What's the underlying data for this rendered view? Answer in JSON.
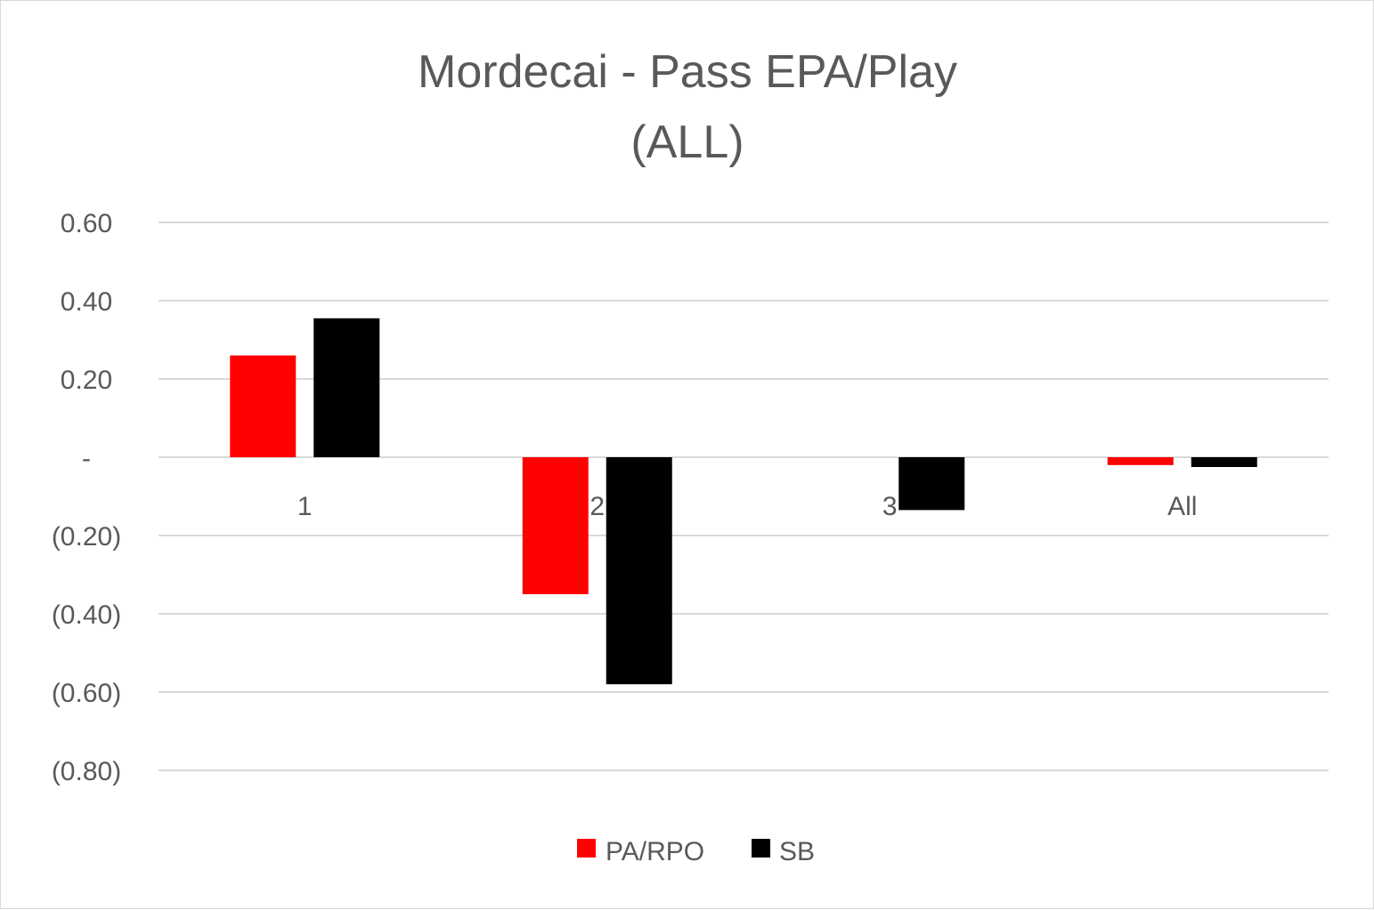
{
  "chart_data": {
    "type": "bar",
    "title_lines": [
      "Mordecai - Pass EPA/Play",
      "(ALL)"
    ],
    "categories": [
      "1",
      "2",
      "3",
      "All"
    ],
    "series": [
      {
        "name": "PA/RPO",
        "color": "#ff0000",
        "values": [
          0.26,
          -0.35,
          null,
          -0.02
        ]
      },
      {
        "name": "SB",
        "color": "#000000",
        "values": [
          0.355,
          -0.58,
          -0.135,
          -0.025
        ]
      }
    ],
    "ylim": [
      -0.8,
      0.6
    ],
    "yticks": [
      {
        "value": 0.6,
        "label": "0.60"
      },
      {
        "value": 0.4,
        "label": "0.40"
      },
      {
        "value": 0.2,
        "label": "0.20"
      },
      {
        "value": 0,
        "label": "-"
      },
      {
        "value": -0.2,
        "label": "(0.20)"
      },
      {
        "value": -0.4,
        "label": "(0.40)"
      },
      {
        "value": -0.6,
        "label": "(0.60)"
      },
      {
        "value": -0.8,
        "label": "(0.80)"
      }
    ],
    "grid": true,
    "legend_position": "bottom"
  }
}
